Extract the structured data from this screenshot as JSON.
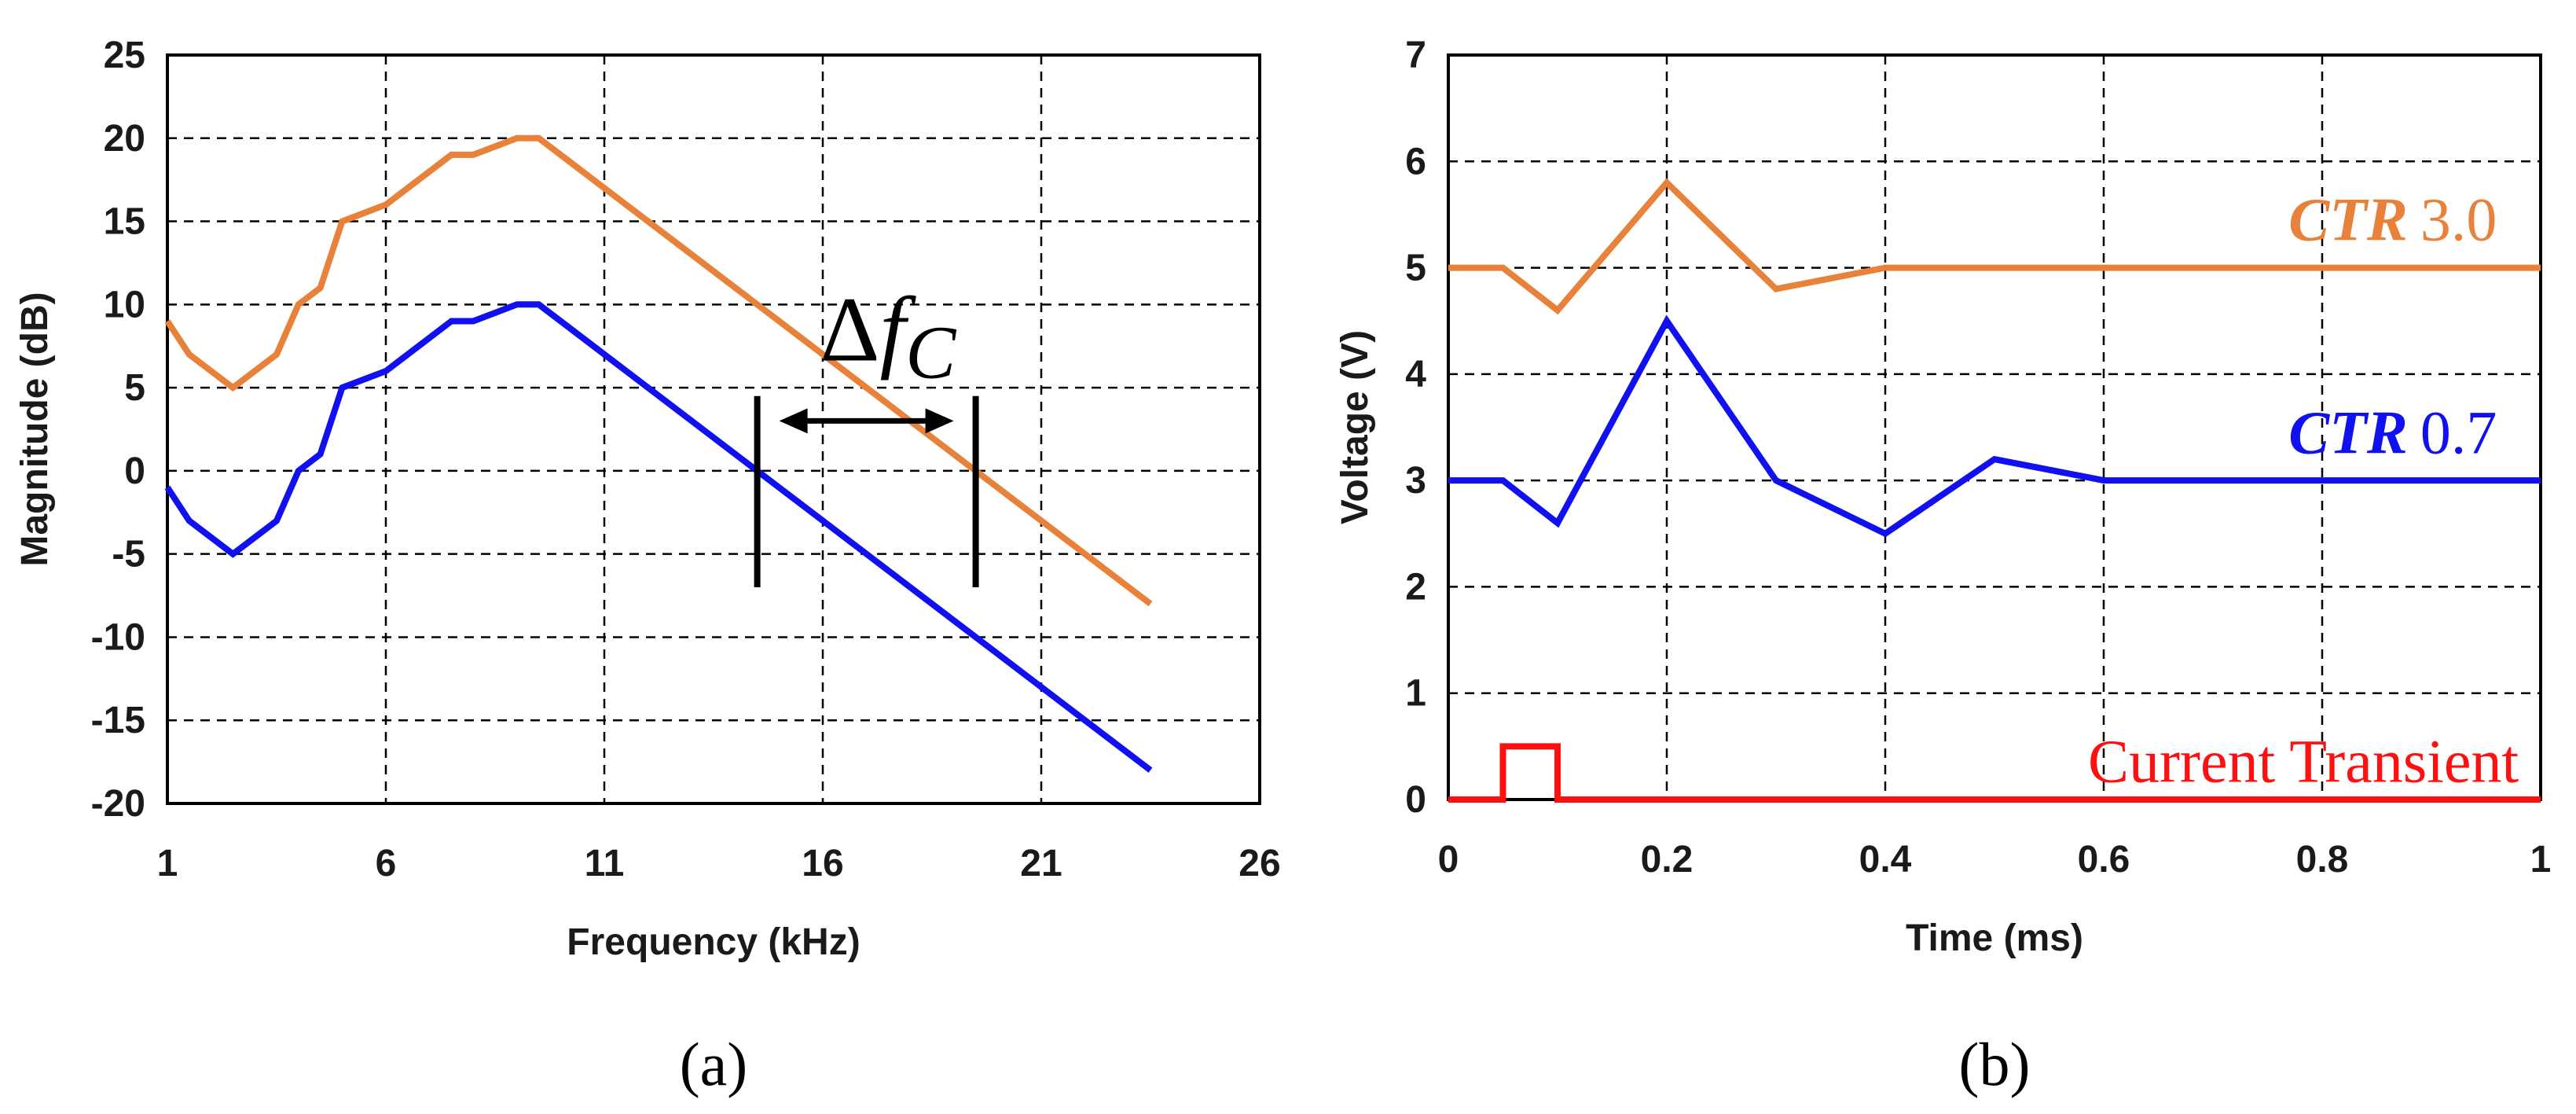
{
  "colors": {
    "orange": "#E8823A",
    "blue": "#1010F0",
    "red": "#FF1010",
    "black": "#000000",
    "grid": "#000000"
  },
  "chart_data": [
    {
      "type": "line",
      "caption": "(a)",
      "xlabel": "Frequency (kHz)",
      "ylabel": "Magnitude (dB)",
      "xlim": [
        1,
        26
      ],
      "ylim": [
        -20,
        25
      ],
      "xticks": [
        1,
        6,
        11,
        16,
        21,
        26
      ],
      "yticks": [
        25,
        20,
        15,
        10,
        5,
        0,
        -5,
        -10,
        -15,
        -20
      ],
      "grid": true,
      "series": [
        {
          "name": "orange",
          "color_key": "orange",
          "x": [
            1,
            1.5,
            2.5,
            3.5,
            4,
            4.5,
            5,
            6,
            7.5,
            8,
            9,
            9.5,
            14.5,
            19.5,
            23.5
          ],
          "y": [
            9,
            7,
            5,
            7,
            10,
            11,
            15,
            16,
            19,
            19,
            20,
            20,
            10,
            0,
            -8
          ]
        },
        {
          "name": "blue",
          "color_key": "blue",
          "x": [
            1,
            1.5,
            2.5,
            3.5,
            4,
            4.5,
            5,
            6,
            7.5,
            8,
            9,
            9.5,
            14.5,
            19.5,
            23.5
          ],
          "y": [
            -1,
            -3,
            -5,
            -3,
            0,
            1,
            5,
            6,
            9,
            9,
            10,
            10,
            0,
            -10,
            -18
          ]
        }
      ],
      "annotation": {
        "label_main": "Δ",
        "label_f": "f",
        "label_sub": "C",
        "left_marker_x": 14.5,
        "right_marker_x": 19.5,
        "marker_y_range": [
          -7,
          4.5
        ],
        "arrow_y": 3
      }
    },
    {
      "type": "line",
      "caption": "(b)",
      "xlabel": "Time (ms)",
      "ylabel": "Voltage (V)",
      "xlim": [
        0,
        1
      ],
      "ylim": [
        0,
        7
      ],
      "xticks": [
        "0",
        "0.2",
        "0.4",
        "0.6",
        "0.8",
        "1"
      ],
      "yticks": [
        "7",
        "6",
        "5",
        "4",
        "3",
        "2",
        "1",
        "0"
      ],
      "grid": true,
      "series": [
        {
          "name": "CTR 3.0",
          "label_italic": "CTR",
          "label_value": "3.0",
          "color_key": "orange",
          "label_at": [
            0.96,
            5.45
          ],
          "x": [
            0,
            0.05,
            0.1,
            0.2,
            0.3,
            0.4,
            1.0
          ],
          "y": [
            5,
            5,
            4.6,
            5.8,
            4.8,
            5,
            5
          ]
        },
        {
          "name": "CTR 0.7",
          "label_italic": "CTR",
          "label_value": "0.7",
          "color_key": "blue",
          "label_at": [
            0.96,
            3.45
          ],
          "x": [
            0,
            0.05,
            0.1,
            0.2,
            0.3,
            0.4,
            0.5,
            0.6,
            1.0
          ],
          "y": [
            3,
            3,
            2.6,
            4.5,
            3,
            2.5,
            3.2,
            3,
            3
          ]
        },
        {
          "name": "Current Transient",
          "color_key": "red",
          "label_at": [
            0.98,
            0.36
          ],
          "x": [
            0,
            0.05,
            0.05,
            0.1,
            0.1,
            1.0
          ],
          "y": [
            0,
            0,
            0.5,
            0.5,
            0,
            0
          ]
        }
      ]
    }
  ]
}
